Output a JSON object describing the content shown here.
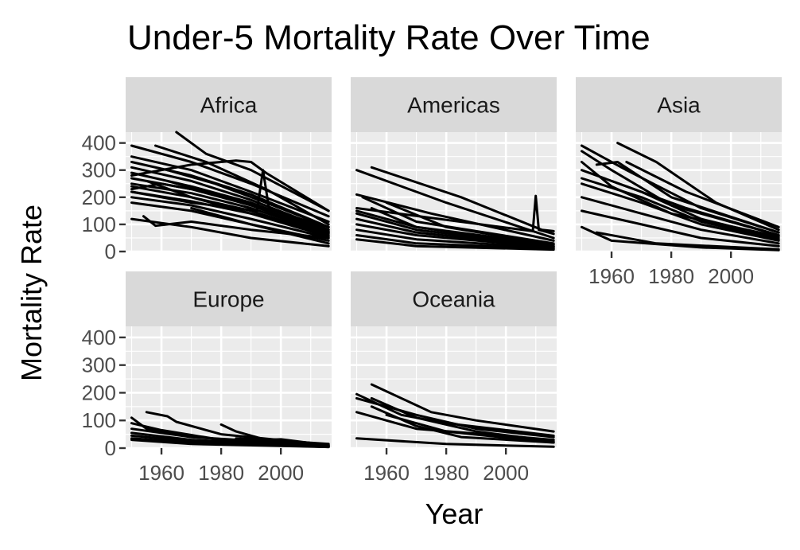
{
  "chart_data": {
    "type": "line",
    "title": "Under-5 Mortality Rate Over Time",
    "xlabel": "Year",
    "ylabel": "Mortality Rate",
    "xlim": [
      1948,
      2017
    ],
    "ylim": [
      0,
      440
    ],
    "x_ticks": [
      1960,
      1980,
      2000
    ],
    "y_ticks": [
      0,
      100,
      200,
      300,
      400
    ],
    "grid": true,
    "facets": [
      {
        "name": "Africa",
        "series": [
          {
            "x": [
              1950,
              1970,
              1990,
              2016
            ],
            "values": [
              390,
              330,
              250,
              130
            ]
          },
          {
            "x": [
              1950,
              1970,
              1990,
              2016
            ],
            "values": [
              350,
              300,
              220,
              110
            ]
          },
          {
            "x": [
              1950,
              1970,
              1990,
              2016
            ],
            "values": [
              330,
              280,
              210,
              90
            ]
          },
          {
            "x": [
              1950,
              1970,
              1990,
              2016
            ],
            "values": [
              310,
              260,
              190,
              80
            ]
          },
          {
            "x": [
              1950,
              1970,
              1990,
              2016
            ],
            "values": [
              290,
              240,
              180,
              75
            ]
          },
          {
            "x": [
              1950,
              1970,
              1990,
              2016
            ],
            "values": [
              270,
              230,
              170,
              70
            ]
          },
          {
            "x": [
              1950,
              1970,
              1990,
              2016
            ],
            "values": [
              250,
              215,
              160,
              65
            ]
          },
          {
            "x": [
              1950,
              1970,
              1990,
              2016
            ],
            "values": [
              240,
              200,
              150,
              60
            ]
          },
          {
            "x": [
              1950,
              1970,
              1990,
              2016
            ],
            "values": [
              220,
              185,
              140,
              55
            ]
          },
          {
            "x": [
              1950,
              1970,
              1990,
              2016
            ],
            "values": [
              200,
              170,
              120,
              50
            ]
          },
          {
            "x": [
              1950,
              1970,
              1990,
              2016
            ],
            "values": [
              180,
              150,
              100,
              40
            ]
          },
          {
            "x": [
              1950,
              1970,
              1990,
              2016
            ],
            "values": [
              120,
              90,
              50,
              20
            ]
          },
          {
            "x": [
              1955,
              1970,
              1990,
              2016
            ],
            "values": [
              260,
              200,
              140,
              70
            ]
          },
          {
            "x": [
              1958,
              1975,
              1995,
              2016
            ],
            "values": [
              390,
              330,
              230,
              100
            ]
          },
          {
            "x": [
              1962,
              1978,
              1995,
              2016
            ],
            "values": [
              300,
              250,
              180,
              90
            ]
          },
          {
            "x": [
              1962,
              1985,
              2016
            ],
            "values": [
              260,
              190,
              90
            ]
          },
          {
            "x": [
              1965,
              1975,
              1990,
              2016
            ],
            "values": [
              440,
              360,
              300,
              150
            ]
          },
          {
            "x": [
              1950,
              1970,
              1985,
              1990,
              1995,
              2016
            ],
            "values": [
              280,
              320,
              335,
              330,
              290,
              150
            ]
          },
          {
            "x": [
              1950,
              1960,
              1975,
              1990,
              2005,
              2016
            ],
            "values": [
              230,
              250,
              220,
              170,
              110,
              80
            ]
          },
          {
            "x": [
              1950,
              1970,
              1992,
              1994,
              1996,
              2016
            ],
            "values": [
              220,
              180,
              150,
              300,
              160,
              70
            ]
          },
          {
            "x": [
              1954,
              1958,
              1970,
              1990,
              2016
            ],
            "values": [
              130,
              95,
              110,
              80,
              50
            ]
          },
          {
            "x": [
              1970,
              1990,
              2016
            ],
            "values": [
              160,
              100,
              30
            ]
          }
        ]
      },
      {
        "name": "Americas",
        "series": [
          {
            "x": [
              1955,
              1985,
              2012,
              2016
            ],
            "values": [
              310,
              200,
              80,
              75
            ]
          },
          {
            "x": [
              1950,
              1980,
              2016
            ],
            "values": [
              300,
              180,
              50
            ]
          },
          {
            "x": [
              1950,
              2009,
              2010,
              2011,
              2016
            ],
            "values": [
              160,
              75,
              205,
              80,
              65
            ]
          },
          {
            "x": [
              1950,
              1975,
              2016
            ],
            "values": [
              210,
              140,
              40
            ]
          },
          {
            "x": [
              1952,
              1970,
              2016
            ],
            "values": [
              200,
              110,
              30
            ]
          },
          {
            "x": [
              1950,
              1970,
              2016
            ],
            "values": [
              150,
              90,
              25
            ]
          },
          {
            "x": [
              1950,
              1970,
              2016
            ],
            "values": [
              140,
              80,
              20
            ]
          },
          {
            "x": [
              1950,
              1970,
              2016
            ],
            "values": [
              120,
              70,
              18
            ]
          },
          {
            "x": [
              1950,
              1970,
              2016
            ],
            "values": [
              100,
              60,
              15
            ]
          },
          {
            "x": [
              1950,
              1970,
              2016
            ],
            "values": [
              80,
              45,
              12
            ]
          },
          {
            "x": [
              1950,
              1970,
              2016
            ],
            "values": [
              60,
              30,
              10
            ]
          },
          {
            "x": [
              1950,
              1970,
              2016
            ],
            "values": [
              45,
              20,
              7
            ]
          },
          {
            "x": [
              1955,
              1970,
              2016
            ],
            "values": [
              160,
              90,
              20
            ]
          },
          {
            "x": [
              1960,
              1980,
              2016
            ],
            "values": [
              180,
              90,
              25
            ]
          }
        ]
      },
      {
        "name": "Asia",
        "series": [
          {
            "x": [
              1950,
              1960,
              1980,
              2016
            ],
            "values": [
              370,
              300,
              170,
              60
            ]
          },
          {
            "x": [
              1950,
              1965,
              1990,
              2016
            ],
            "values": [
              390,
              300,
              160,
              70
            ]
          },
          {
            "x": [
              1950,
              1960,
              1980,
              2016
            ],
            "values": [
              330,
              240,
              140,
              55
            ]
          },
          {
            "x": [
              1950,
              1970,
              1990,
              2016
            ],
            "values": [
              300,
              220,
              120,
              50
            ]
          },
          {
            "x": [
              1950,
              1970,
              1990,
              2016
            ],
            "values": [
              270,
              200,
              110,
              45
            ]
          },
          {
            "x": [
              1950,
              1970,
              1990,
              2016
            ],
            "values": [
              250,
              180,
              100,
              40
            ]
          },
          {
            "x": [
              1950,
              1970,
              1990,
              2016
            ],
            "values": [
              200,
              140,
              80,
              30
            ]
          },
          {
            "x": [
              1950,
              1970,
              1990,
              2016
            ],
            "values": [
              150,
              100,
              50,
              20
            ]
          },
          {
            "x": [
              1950,
              1960,
              1990,
              2016
            ],
            "values": [
              90,
              40,
              15,
              5
            ]
          },
          {
            "x": [
              1955,
              1962,
              1980,
              2016
            ],
            "values": [
              320,
              330,
              200,
              70
            ]
          },
          {
            "x": [
              1962,
              1975,
              1995,
              2016
            ],
            "values": [
              400,
              330,
              180,
              80
            ]
          },
          {
            "x": [
              1965,
              1985,
              2016
            ],
            "values": [
              330,
              220,
              90
            ]
          },
          {
            "x": [
              1960,
              1985,
              2016
            ],
            "values": [
              260,
              160,
              60
            ]
          },
          {
            "x": [
              1955,
              1975,
              2016
            ],
            "values": [
              70,
              30,
              8
            ]
          }
        ]
      },
      {
        "name": "Europe",
        "series": [
          {
            "x": [
              1950,
              1955,
              1970,
              2016
            ],
            "values": [
              110,
              70,
              40,
              10
            ]
          },
          {
            "x": [
              1955,
              1962,
              1965,
              1980,
              2016
            ],
            "values": [
              130,
              115,
              95,
              50,
              12
            ]
          },
          {
            "x": [
              1950,
              1960,
              1980,
              2016
            ],
            "values": [
              90,
              65,
              30,
              8
            ]
          },
          {
            "x": [
              1950,
              1970,
              2016
            ],
            "values": [
              70,
              40,
              6
            ]
          },
          {
            "x": [
              1950,
              1970,
              2016
            ],
            "values": [
              55,
              30,
              5
            ]
          },
          {
            "x": [
              1950,
              1970,
              2016
            ],
            "values": [
              45,
              25,
              5
            ]
          },
          {
            "x": [
              1950,
              1970,
              2016
            ],
            "values": [
              35,
              20,
              4
            ]
          },
          {
            "x": [
              1950,
              1970,
              2016
            ],
            "values": [
              30,
              15,
              4
            ]
          },
          {
            "x": [
              1980,
              1985,
              1995,
              2016
            ],
            "values": [
              85,
              60,
              30,
              15
            ]
          },
          {
            "x": [
              1985,
              1995,
              2000,
              2016
            ],
            "values": [
              35,
              30,
              32,
              10
            ]
          }
        ]
      },
      {
        "name": "Oceania",
        "series": [
          {
            "x": [
              1955,
              1975,
              1990,
              2016
            ],
            "values": [
              230,
              130,
              100,
              60
            ]
          },
          {
            "x": [
              1950,
              1965,
              1980,
              2016
            ],
            "values": [
              195,
              120,
              90,
              45
            ]
          },
          {
            "x": [
              1950,
              1970,
              1990,
              2016
            ],
            "values": [
              180,
              120,
              70,
              40
            ]
          },
          {
            "x": [
              1950,
              1970,
              2016
            ],
            "values": [
              130,
              70,
              30
            ]
          },
          {
            "x": [
              1955,
              1970,
              1990,
              2016
            ],
            "values": [
              180,
              110,
              60,
              25
            ]
          },
          {
            "x": [
              1950,
              1980,
              2016
            ],
            "values": [
              35,
              15,
              5
            ]
          },
          {
            "x": [
              1955,
              1970,
              1985,
              2016
            ],
            "values": [
              150,
              80,
              40,
              20
            ]
          },
          {
            "x": [
              1960,
              1980,
              2016
            ],
            "values": [
              120,
              60,
              20
            ]
          }
        ]
      }
    ]
  }
}
